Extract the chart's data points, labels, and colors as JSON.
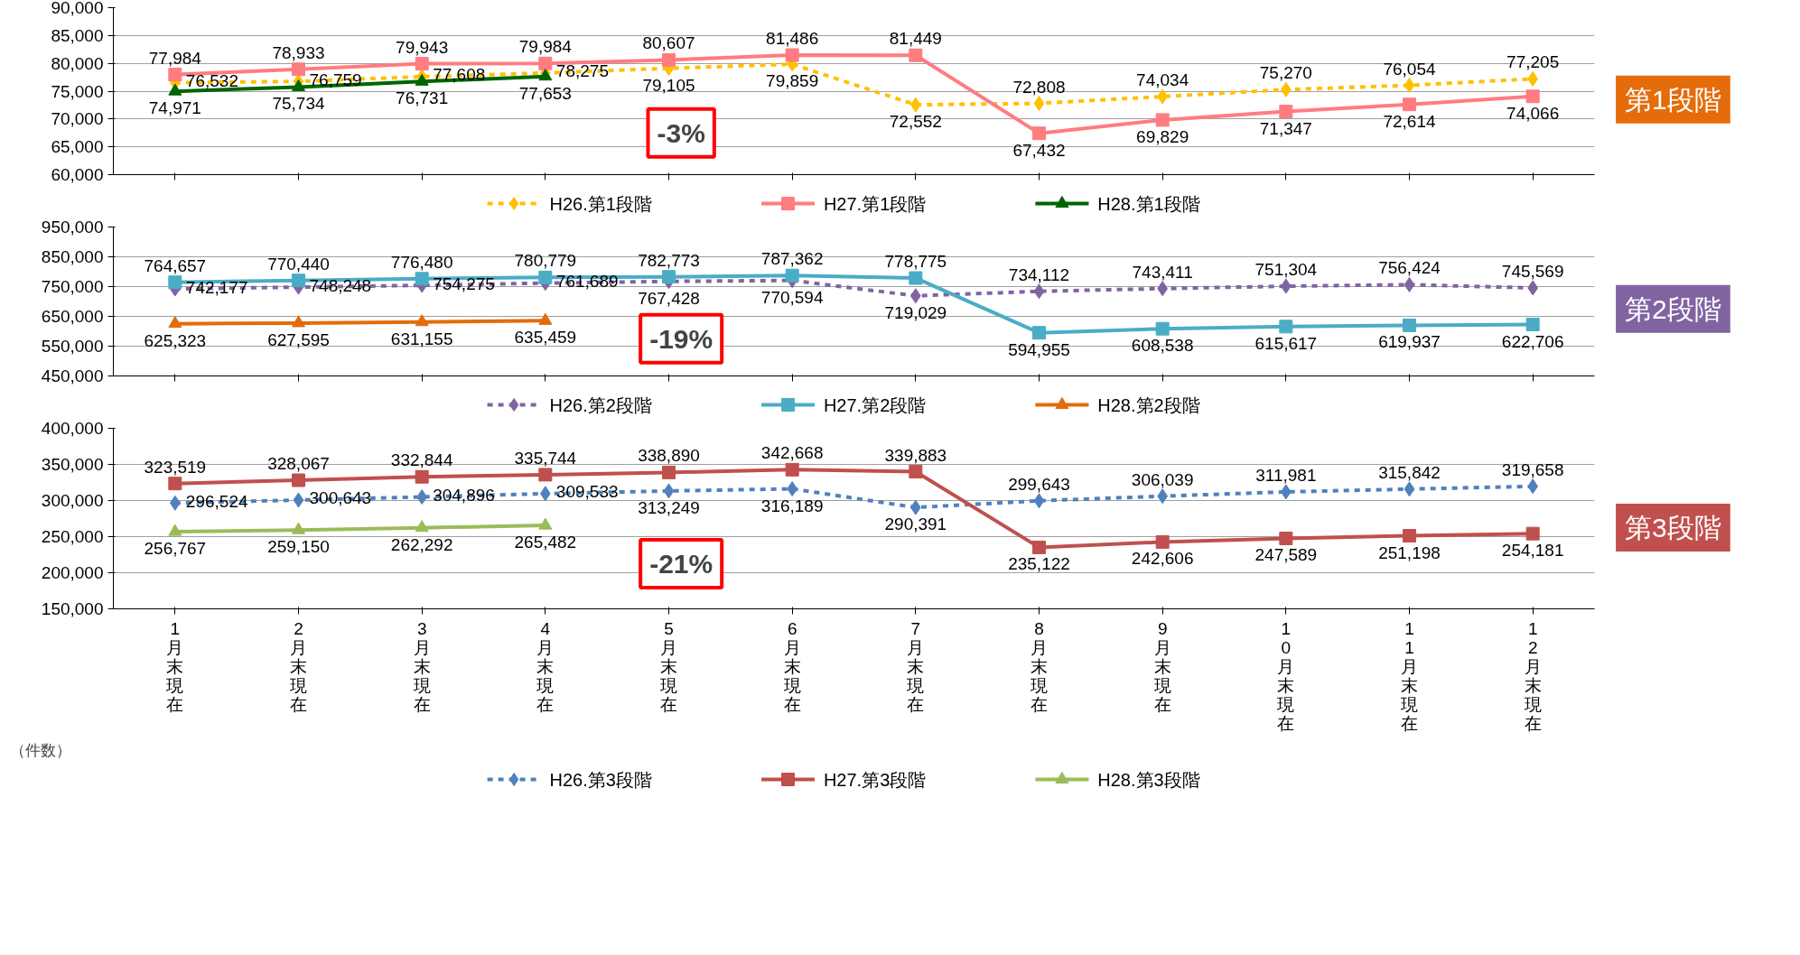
{
  "chart_data": [
    {
      "type": "line",
      "categories": [
        "1月末現在",
        "2月末現在",
        "3月末現在",
        "4月末現在",
        "5月末現在",
        "6月末現在",
        "7月末現在",
        "8月末現在",
        "9月末現在",
        "10月末現在",
        "11月末現在",
        "12月末現在"
      ],
      "ylim": [
        60000,
        90000
      ],
      "yticks": [
        {
          "value": 60000,
          "label": "60,000"
        },
        {
          "value": 65000,
          "label": "65,000"
        },
        {
          "value": 70000,
          "label": "70,000"
        },
        {
          "value": 75000,
          "label": "75,000"
        },
        {
          "value": 80000,
          "label": "80,000"
        },
        {
          "value": 85000,
          "label": "85,000"
        },
        {
          "value": 90000,
          "label": "90,000"
        }
      ],
      "grid": "y",
      "legend": "bottom",
      "tick_labels": "y",
      "annotations": [
        "-3%",
        "第1段階"
      ],
      "series": [
        {
          "name": "H26.第1段階",
          "color": "#ffc000",
          "line_style": "dashed",
          "marker": "diamond",
          "values": [
            76532,
            76759,
            77608,
            78275,
            79105,
            79859,
            72552,
            72808,
            74034,
            75270,
            76054,
            77205
          ],
          "value_labels": [
            "76,532",
            "76,759",
            "77,608",
            "78,275",
            "79,105",
            "79,859",
            "72,552",
            "72,808",
            "74,034",
            "75,270",
            "76,054",
            "77,205"
          ]
        },
        {
          "name": "H27.第1段階",
          "color": "#ff7c80",
          "line_style": "solid",
          "marker": "square",
          "values": [
            77984,
            78933,
            79943,
            79984,
            80607,
            81486,
            81449,
            67432,
            69829,
            71347,
            72614,
            74066
          ],
          "value_labels": [
            "77,984",
            "78,933",
            "79,943",
            "79,984",
            "80,607",
            "81,486",
            "81,449",
            "67,432",
            "69,829",
            "71,347",
            "72,614",
            "74,066"
          ]
        },
        {
          "name": "H28.第1段階",
          "color": "#006400",
          "line_style": "solid",
          "marker": "triangle",
          "values": [
            74971,
            75734,
            76731,
            77653,
            null,
            null,
            null,
            null,
            null,
            null,
            null,
            null
          ],
          "value_labels": [
            "74,971",
            "75,734",
            "76,731",
            "77,653",
            null,
            null,
            null,
            null,
            null,
            null,
            null,
            null
          ]
        }
      ]
    },
    {
      "type": "line",
      "categories": [
        "1月末現在",
        "2月末現在",
        "3月末現在",
        "4月末現在",
        "5月末現在",
        "6月末現在",
        "7月末現在",
        "8月末現在",
        "9月末現在",
        "10月末現在",
        "11月末現在",
        "12月末現在"
      ],
      "ylim": [
        450000,
        950000
      ],
      "yticks": [
        {
          "value": 450000,
          "label": "450,000"
        },
        {
          "value": 550000,
          "label": "550,000"
        },
        {
          "value": 650000,
          "label": "650,000"
        },
        {
          "value": 750000,
          "label": "750,000"
        },
        {
          "value": 850000,
          "label": "850,000"
        },
        {
          "value": 950000,
          "label": "950,000"
        }
      ],
      "grid": "y",
      "legend": "bottom",
      "tick_labels": "y",
      "annotations": [
        "-19%",
        "第2段階"
      ],
      "series": [
        {
          "name": "H26.第2段階",
          "color": "#8064a2",
          "line_style": "dashed",
          "marker": "diamond",
          "values": [
            742177,
            748248,
            754275,
            761689,
            767428,
            770594,
            719029,
            734112,
            743411,
            751304,
            756424,
            745569
          ],
          "value_labels": [
            "742,177",
            "748,248",
            "754,275",
            "761,689",
            "767,428",
            "770,594",
            "719,029",
            "734,112",
            "743,411",
            "751,304",
            "756,424",
            "745,569"
          ]
        },
        {
          "name": "H27.第2段階",
          "color": "#4bacc6",
          "line_style": "solid",
          "marker": "square",
          "values": [
            764657,
            770440,
            776480,
            780779,
            782773,
            787362,
            778775,
            594955,
            608538,
            615617,
            619937,
            622706
          ],
          "value_labels": [
            "764,657",
            "770,440",
            "776,480",
            "780,779",
            "782,773",
            "787,362",
            "778,775",
            "594,955",
            "608,538",
            "615,617",
            "619,937",
            "622,706"
          ]
        },
        {
          "name": "H28.第2段階",
          "color": "#e36c09",
          "line_style": "solid",
          "marker": "triangle",
          "values": [
            625323,
            627595,
            631155,
            635459,
            null,
            null,
            null,
            null,
            null,
            null,
            null,
            null
          ],
          "value_labels": [
            "625,323",
            "627,595",
            "631,155",
            "635,459",
            null,
            null,
            null,
            null,
            null,
            null,
            null,
            null
          ]
        }
      ]
    },
    {
      "type": "line",
      "categories": [
        "1月末現在",
        "2月末現在",
        "3月末現在",
        "4月末現在",
        "5月末現在",
        "6月末現在",
        "7月末現在",
        "8月末現在",
        "9月末現在",
        "10月末現在",
        "11月末現在",
        "12月末現在"
      ],
      "ylim": [
        150000,
        400000
      ],
      "yticks": [
        {
          "value": 150000,
          "label": "150,000"
        },
        {
          "value": 200000,
          "label": "200,000"
        },
        {
          "value": 250000,
          "label": "250,000"
        },
        {
          "value": 300000,
          "label": "300,000"
        },
        {
          "value": 350000,
          "label": "350,000"
        },
        {
          "value": 400000,
          "label": "400,000"
        }
      ],
      "grid": "y",
      "legend": "bottom",
      "annotations": [
        "-21%",
        "第3段階",
        "（件数）"
      ],
      "series": [
        {
          "name": "H26.第3段階",
          "color": "#4f81bd",
          "line_style": "dashed",
          "marker": "diamond",
          "values": [
            296524,
            300643,
            304896,
            309533,
            313249,
            316189,
            290391,
            299643,
            306039,
            311981,
            315842,
            319658
          ],
          "value_labels": [
            "296,524",
            "300,643",
            "304,896",
            "309,533",
            "313,249",
            "316,189",
            "290,391",
            "299,643",
            "306,039",
            "311,981",
            "315,842",
            "319,658"
          ]
        },
        {
          "name": "H27.第3段階",
          "color": "#c0504d",
          "line_style": "solid",
          "marker": "square",
          "values": [
            323519,
            328067,
            332844,
            335744,
            338890,
            342668,
            339883,
            235122,
            242606,
            247589,
            251198,
            254181
          ],
          "value_labels": [
            "323,519",
            "328,067",
            "332,844",
            "335,744",
            "338,890",
            "342,668",
            "339,883",
            "235,122",
            "242,606",
            "247,589",
            "251,198",
            "254,181"
          ]
        },
        {
          "name": "H28.第3段階",
          "color": "#9bbb59",
          "line_style": "solid",
          "marker": "triangle",
          "values": [
            256767,
            259150,
            262292,
            265482,
            null,
            null,
            null,
            null,
            null,
            null,
            null,
            null
          ],
          "value_labels": [
            "256,767",
            "259,150",
            "262,292",
            "265,482",
            null,
            null,
            null,
            null,
            null,
            null,
            null,
            null
          ]
        }
      ]
    }
  ]
}
